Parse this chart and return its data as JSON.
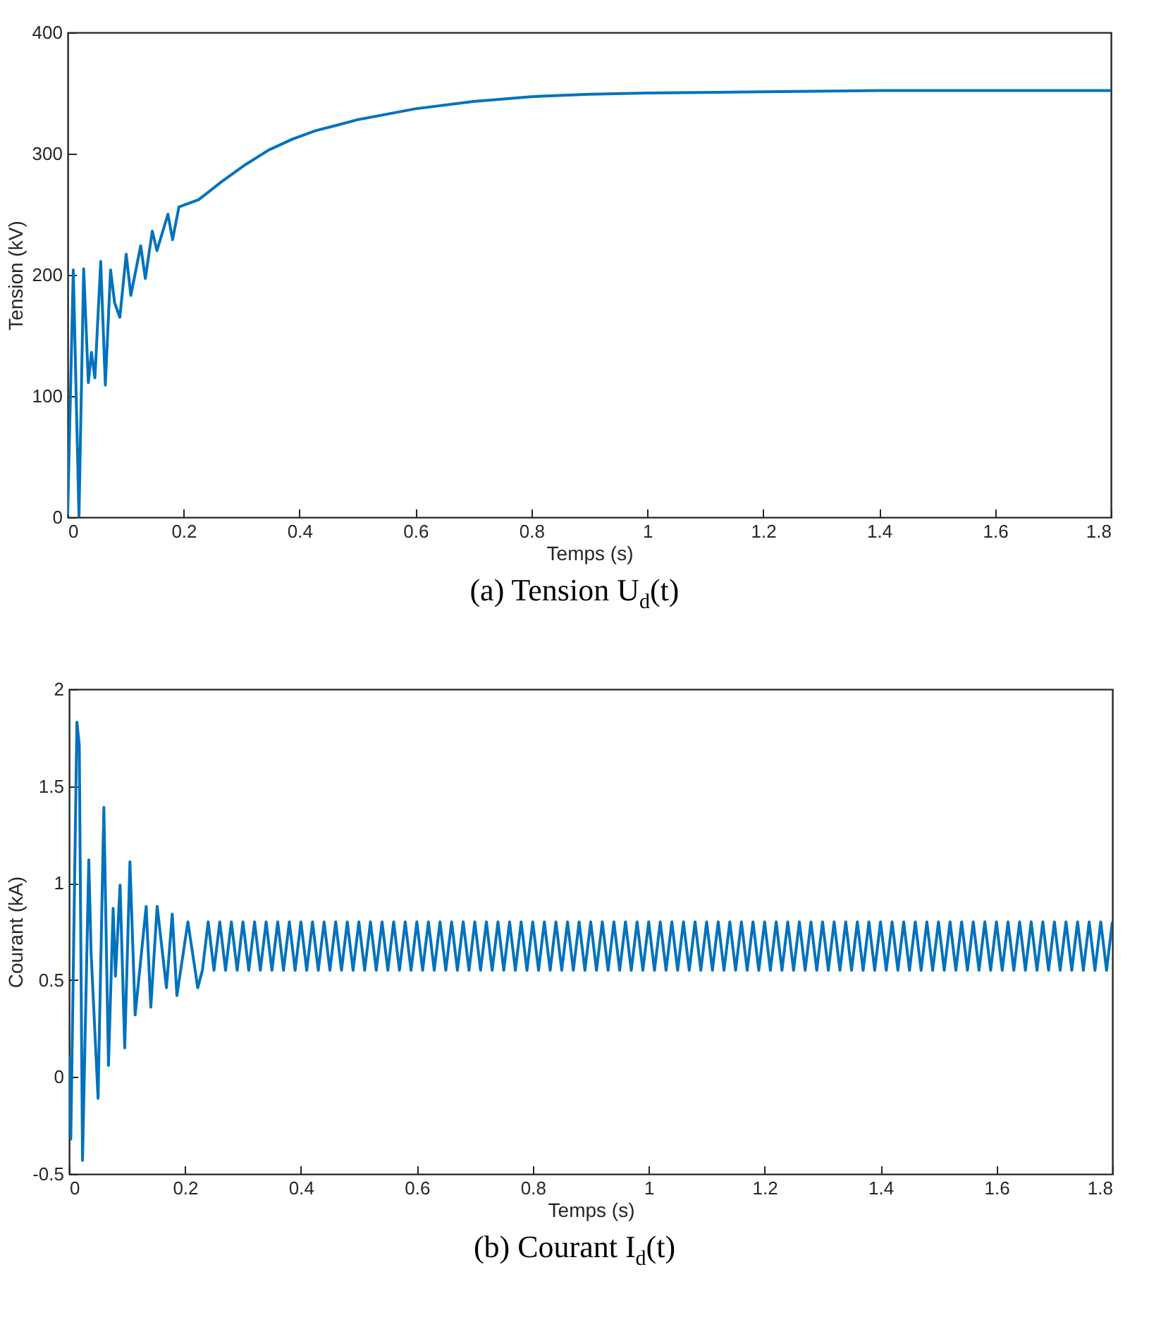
{
  "chart_data": [
    {
      "type": "line",
      "title": "(a) Tension U$_{d}$(t)",
      "xlabel": "Temps (s)",
      "ylabel": "Tension (kV)",
      "xlim": [
        0,
        1.8
      ],
      "ylim": [
        0,
        400
      ],
      "xticks": [
        0,
        0.2,
        0.4,
        0.6,
        0.8,
        1,
        1.2,
        1.4,
        1.6,
        1.8
      ],
      "yticks": [
        0,
        100,
        200,
        300,
        400
      ],
      "series": [
        {
          "color": "#0072bd",
          "x": [
            0,
            0.0097,
            0.0195,
            0.0276,
            0.0357,
            0.041,
            0.047,
            0.057,
            0.065,
            0.074,
            0.081,
            0.09,
            0.101,
            0.109,
            0.126,
            0.134,
            0.146,
            0.154,
            0.173,
            0.181,
            0.192,
            0.226,
            0.266,
            0.307,
            0.347,
            0.388,
            0.428,
            0.469,
            0.5,
            0.6,
            0.7,
            0.8,
            0.9,
            1,
            1.2,
            1.4,
            1.6,
            1.8
          ],
          "values": [
            2,
            204,
            0,
            205,
            111,
            136,
            115,
            211,
            109,
            204,
            177,
            165,
            217,
            183,
            224,
            197,
            236,
            220,
            250,
            229,
            256,
            262,
            277,
            291,
            303,
            312,
            319,
            324,
            328,
            337,
            343,
            347,
            349,
            350,
            351,
            352,
            352,
            352
          ]
        }
      ]
    },
    {
      "type": "line",
      "title": "(b) Courant I$_{d}$(t)",
      "xlabel": "Temps (s)",
      "ylabel": "Courant (kA)",
      "xlim": [
        0,
        1.8
      ],
      "ylim": [
        -0.5,
        2
      ],
      "xticks": [
        0,
        0.2,
        0.4,
        0.6,
        0.8,
        1,
        1.2,
        1.4,
        1.6,
        1.8
      ],
      "yticks": [
        -0.5,
        0,
        0.5,
        1,
        1.5,
        2
      ],
      "series": [
        {
          "color": "#0072bd",
          "x": [
            0,
            0.003,
            0.0135,
            0.0176,
            0.0232,
            0.034,
            0.038,
            0.05,
            0.06,
            0.068,
            0.076,
            0.08,
            0.088,
            0.096,
            0.105,
            0.114,
            0.133,
            0.141,
            0.152,
            0.168,
            0.178,
            0.186,
            0.205,
            0.222,
            0.23,
            0.24,
            0.25,
            0.26,
            0.27,
            0.28,
            0.29,
            0.3,
            0.31,
            0.32,
            0.33,
            0.34,
            0.35,
            0.36,
            0.37,
            0.38,
            0.39,
            0.4,
            0.41,
            0.42,
            0.43,
            0.44,
            0.45,
            0.46,
            0.47,
            0.48,
            0.49,
            0.5,
            0.51,
            0.52,
            0.53,
            0.54,
            0.55,
            0.56,
            0.57,
            0.58,
            0.59,
            0.6,
            0.61,
            0.62,
            0.63,
            0.64,
            0.65,
            0.66,
            0.67,
            0.68,
            0.69,
            0.7,
            0.71,
            0.72,
            0.73,
            0.74,
            0.75,
            0.76,
            0.77,
            0.78,
            0.79,
            0.8,
            0.81,
            0.82,
            0.83,
            0.84,
            0.85,
            0.86,
            0.87,
            0.88,
            0.89,
            0.9,
            0.91,
            0.92,
            0.93,
            0.94,
            0.95,
            0.96,
            0.97,
            0.98,
            0.99,
            1,
            1.01,
            1.02,
            1.03,
            1.04,
            1.05,
            1.06,
            1.07,
            1.08,
            1.09,
            1.1,
            1.11,
            1.12,
            1.13,
            1.14,
            1.15,
            1.16,
            1.17,
            1.18,
            1.19,
            1.2,
            1.21,
            1.22,
            1.23,
            1.24,
            1.25,
            1.26,
            1.27,
            1.28,
            1.29,
            1.3,
            1.31,
            1.32,
            1.33,
            1.34,
            1.35,
            1.36,
            1.37,
            1.38,
            1.39,
            1.4,
            1.41,
            1.42,
            1.43,
            1.44,
            1.45,
            1.46,
            1.47,
            1.48,
            1.49,
            1.5,
            1.51,
            1.52,
            1.53,
            1.54,
            1.55,
            1.56,
            1.57,
            1.58,
            1.59,
            1.6,
            1.61,
            1.62,
            1.63,
            1.64,
            1.65,
            1.66,
            1.67,
            1.68,
            1.69,
            1.7,
            1.71,
            1.72,
            1.73,
            1.74,
            1.75,
            1.76,
            1.77,
            1.78,
            1.79,
            1.8
          ],
          "values": [
            0.11,
            -0.32,
            1.83,
            1.71,
            -0.43,
            1.12,
            0.64,
            -0.11,
            1.39,
            0.06,
            0.87,
            0.52,
            0.99,
            0.15,
            1.11,
            0.32,
            0.88,
            0.36,
            0.88,
            0.46,
            0.84,
            0.42,
            0.8,
            0.46,
            0.55,
            0.8,
            0.55,
            0.8,
            0.55,
            0.8,
            0.55,
            0.8,
            0.55,
            0.8,
            0.55,
            0.8,
            0.55,
            0.8,
            0.55,
            0.8,
            0.55,
            0.8,
            0.55,
            0.8,
            0.55,
            0.8,
            0.55,
            0.8,
            0.55,
            0.8,
            0.55,
            0.8,
            0.55,
            0.8,
            0.55,
            0.8,
            0.55,
            0.8,
            0.55,
            0.8,
            0.55,
            0.8,
            0.55,
            0.8,
            0.55,
            0.8,
            0.55,
            0.8,
            0.55,
            0.8,
            0.55,
            0.8,
            0.55,
            0.8,
            0.55,
            0.8,
            0.55,
            0.8,
            0.55,
            0.8,
            0.55,
            0.8,
            0.55,
            0.8,
            0.55,
            0.8,
            0.55,
            0.8,
            0.55,
            0.8,
            0.55,
            0.8,
            0.55,
            0.8,
            0.55,
            0.8,
            0.55,
            0.8,
            0.55,
            0.8,
            0.55,
            0.8,
            0.55,
            0.8,
            0.55,
            0.8,
            0.55,
            0.8,
            0.55,
            0.8,
            0.55,
            0.8,
            0.55,
            0.8,
            0.55,
            0.8,
            0.55,
            0.8,
            0.55,
            0.8,
            0.55,
            0.8,
            0.55,
            0.8,
            0.55,
            0.8,
            0.55,
            0.8,
            0.55,
            0.8,
            0.55,
            0.8,
            0.55,
            0.8,
            0.55,
            0.8,
            0.55,
            0.8,
            0.55,
            0.8,
            0.55,
            0.8,
            0.55,
            0.8,
            0.55,
            0.8,
            0.55,
            0.8,
            0.55,
            0.8,
            0.55,
            0.8,
            0.55,
            0.8,
            0.55,
            0.8,
            0.55,
            0.8,
            0.55,
            0.8,
            0.55,
            0.8,
            0.55,
            0.8,
            0.55,
            0.8,
            0.55,
            0.8,
            0.55,
            0.8,
            0.55,
            0.8,
            0.55,
            0.8,
            0.55,
            0.8,
            0.55,
            0.8,
            0.55,
            0.8,
            0.55,
            0.8
          ]
        }
      ]
    }
  ]
}
